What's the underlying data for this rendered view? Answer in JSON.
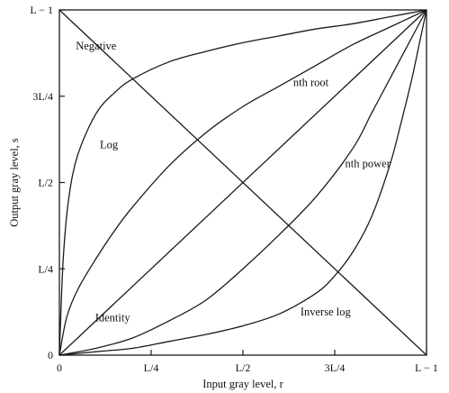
{
  "chart_data": {
    "type": "line",
    "title": "",
    "xlabel": "Input gray level, r",
    "ylabel": "Output gray level, s",
    "xlim": [
      0,
      1
    ],
    "ylim": [
      0,
      1
    ],
    "grid": false,
    "x_ticks": [
      {
        "value": 0,
        "label": "0"
      },
      {
        "value": 0.25,
        "label": "L/4"
      },
      {
        "value": 0.5,
        "label": "L/2"
      },
      {
        "value": 0.75,
        "label": "3L/4"
      },
      {
        "value": 1,
        "label": "L − 1"
      }
    ],
    "y_ticks": [
      {
        "value": 0,
        "label": "0"
      },
      {
        "value": 0.25,
        "label": "L/4"
      },
      {
        "value": 0.5,
        "label": "L/2"
      },
      {
        "value": 0.75,
        "label": "3L/4"
      },
      {
        "value": 1,
        "label": "L − 1"
      }
    ],
    "series": [
      {
        "name": "Negative",
        "x": [
          0,
          1
        ],
        "y": [
          1,
          0
        ]
      },
      {
        "name": "Identity",
        "x": [
          0,
          1
        ],
        "y": [
          0,
          1
        ]
      },
      {
        "name": "Log",
        "x": [
          0,
          0.01,
          0.025,
          0.05,
          0.1,
          0.15,
          0.2,
          0.3,
          0.4,
          0.5,
          0.6,
          0.7,
          0.8,
          0.9,
          1
        ],
        "y": [
          0,
          0.27,
          0.45,
          0.58,
          0.7,
          0.76,
          0.8,
          0.85,
          0.88,
          0.905,
          0.925,
          0.945,
          0.96,
          0.98,
          1
        ]
      },
      {
        "name": "nth root",
        "x": [
          0,
          0.02,
          0.05,
          0.1,
          0.15,
          0.2,
          0.3,
          0.4,
          0.5,
          0.6,
          0.7,
          0.8,
          0.9,
          1
        ],
        "y": [
          0,
          0.11,
          0.19,
          0.28,
          0.36,
          0.43,
          0.55,
          0.645,
          0.72,
          0.78,
          0.84,
          0.9,
          0.95,
          1
        ]
      },
      {
        "name": "nth power",
        "x": [
          0,
          0.1,
          0.2,
          0.3,
          0.4,
          0.5,
          0.6,
          0.7,
          0.8,
          0.85,
          0.9,
          0.95,
          1
        ],
        "y": [
          0,
          0.02,
          0.05,
          0.1,
          0.16,
          0.25,
          0.35,
          0.46,
          0.6,
          0.7,
          0.8,
          0.9,
          1
        ]
      },
      {
        "name": "Inverse log",
        "x": [
          0,
          0.1,
          0.2,
          0.3,
          0.4,
          0.5,
          0.6,
          0.7,
          0.75,
          0.8,
          0.85,
          0.9,
          0.93,
          0.96,
          0.98,
          1
        ],
        "y": [
          0,
          0.01,
          0.02,
          0.04,
          0.06,
          0.085,
          0.12,
          0.18,
          0.23,
          0.3,
          0.4,
          0.55,
          0.67,
          0.8,
          0.9,
          1
        ]
      }
    ],
    "annotations": [
      {
        "text": "Negative",
        "x": 0.1,
        "y": 0.895
      },
      {
        "text": "Log",
        "x": 0.135,
        "y": 0.61
      },
      {
        "text": "nth root",
        "x": 0.685,
        "y": 0.79
      },
      {
        "text": "nth power",
        "x": 0.84,
        "y": 0.555
      },
      {
        "text": "Identity",
        "x": 0.145,
        "y": 0.108
      },
      {
        "text": "Inverse log",
        "x": 0.725,
        "y": 0.125
      }
    ]
  }
}
